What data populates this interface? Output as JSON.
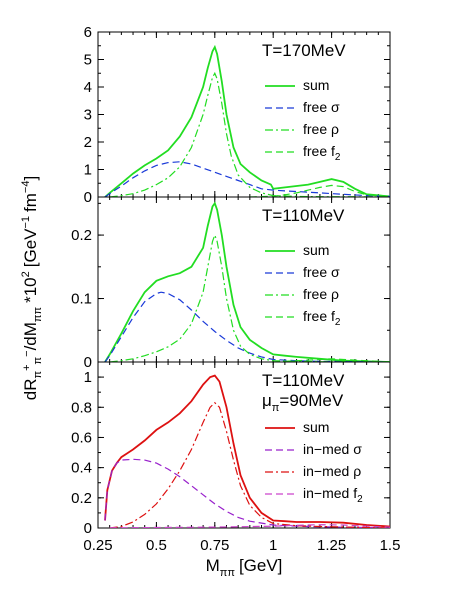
{
  "figure": {
    "xlabel": "M",
    "xlabel_sub": "ππ",
    "xlabel_unit": "[GeV]",
    "ylabel": "dR",
    "ylabel_sub": "π",
    "ylabel_sup": "+",
    "ylabel_sub2": "π",
    "ylabel_sup2": "−",
    "ylabel_mid": "/dM",
    "ylabel_sub3": "ππ",
    "ylabel_pow": "*10",
    "ylabel_pow_exp": "2",
    "ylabel_unit_open": "[GeV",
    "ylabel_unit_exp1": "−1",
    "ylabel_unit_mid": "fm",
    "ylabel_unit_exp2": "−4",
    "ylabel_unit_close": "]"
  },
  "chart_data": [
    {
      "type": "line",
      "panel": "top",
      "annotation": "T=170MeV",
      "xlim": [
        0.25,
        1.5
      ],
      "ylim": [
        0,
        6
      ],
      "x_ticks": [
        "0.25",
        "0.5",
        "0.75",
        "1",
        "1.25",
        "1.5"
      ],
      "y_ticks": [
        "0",
        "1",
        "2",
        "3",
        "4",
        "5",
        "6"
      ],
      "series": [
        {
          "name": "sum",
          "color": "#22dd22",
          "dash": "solid",
          "x": [
            0.28,
            0.3,
            0.35,
            0.4,
            0.45,
            0.5,
            0.55,
            0.6,
            0.65,
            0.7,
            0.72,
            0.74,
            0.75,
            0.76,
            0.78,
            0.8,
            0.83,
            0.86,
            0.9,
            0.95,
            0.99,
            1.0,
            1.05,
            1.1,
            1.15,
            1.2,
            1.25,
            1.3,
            1.35,
            1.4,
            1.5
          ],
          "y": [
            0,
            0.15,
            0.5,
            0.85,
            1.15,
            1.4,
            1.7,
            2.2,
            2.9,
            4.0,
            4.7,
            5.3,
            5.45,
            5.2,
            4.2,
            3.0,
            1.8,
            1.2,
            0.9,
            0.6,
            0.45,
            0.3,
            0.35,
            0.4,
            0.45,
            0.55,
            0.65,
            0.55,
            0.3,
            0.1,
            0.02
          ]
        },
        {
          "name": "free σ",
          "color": "#1a3ad8",
          "dash": "dashed",
          "x": [
            0.28,
            0.3,
            0.35,
            0.4,
            0.45,
            0.5,
            0.55,
            0.6,
            0.65,
            0.7,
            0.75,
            0.8,
            0.85,
            0.9,
            0.95,
            1.0,
            1.05,
            1.1,
            1.2,
            1.3,
            1.4,
            1.5
          ],
          "y": [
            0,
            0.12,
            0.4,
            0.7,
            0.95,
            1.15,
            1.25,
            1.28,
            1.2,
            1.05,
            0.9,
            0.75,
            0.6,
            0.45,
            0.3,
            0.25,
            0.22,
            0.2,
            0.15,
            0.1,
            0.05,
            0.02
          ]
        },
        {
          "name": "free ρ",
          "color": "#22dd22",
          "dash": "dashdot",
          "x": [
            0.3,
            0.35,
            0.4,
            0.45,
            0.5,
            0.55,
            0.6,
            0.65,
            0.7,
            0.72,
            0.74,
            0.75,
            0.76,
            0.78,
            0.8,
            0.82,
            0.85,
            0.9,
            0.95,
            1.0,
            1.1,
            1.2,
            1.3,
            1.5
          ],
          "y": [
            0,
            0.05,
            0.12,
            0.25,
            0.45,
            0.7,
            1.1,
            1.8,
            3.0,
            3.7,
            4.35,
            4.5,
            4.3,
            3.4,
            2.3,
            1.5,
            0.8,
            0.35,
            0.15,
            0.05,
            0.02,
            0.01,
            0.01,
            0
          ]
        },
        {
          "name": "free f",
          "name_sub": "2",
          "color": "#22dd22",
          "dash": "dashed",
          "x": [
            0.9,
            1.0,
            1.05,
            1.1,
            1.15,
            1.2,
            1.25,
            1.3,
            1.35,
            1.4,
            1.5
          ],
          "y": [
            0,
            0.03,
            0.08,
            0.15,
            0.25,
            0.35,
            0.42,
            0.38,
            0.2,
            0.08,
            0.01
          ]
        }
      ]
    },
    {
      "type": "line",
      "panel": "middle",
      "annotation": "T=110MeV",
      "xlim": [
        0.25,
        1.5
      ],
      "ylim": [
        0,
        0.26
      ],
      "x_ticks": [
        "0.25",
        "0.5",
        "0.75",
        "1",
        "1.25",
        "1.5"
      ],
      "y_ticks": [
        "0",
        "0.1",
        "0.2"
      ],
      "series": [
        {
          "name": "sum",
          "color": "#22dd22",
          "dash": "solid",
          "x": [
            0.28,
            0.3,
            0.35,
            0.4,
            0.45,
            0.5,
            0.55,
            0.6,
            0.65,
            0.7,
            0.72,
            0.74,
            0.75,
            0.76,
            0.78,
            0.8,
            0.83,
            0.86,
            0.9,
            0.95,
            1.0,
            1.05,
            1.1,
            1.2,
            1.3,
            1.5
          ],
          "y": [
            0,
            0.012,
            0.045,
            0.08,
            0.11,
            0.128,
            0.135,
            0.14,
            0.15,
            0.18,
            0.215,
            0.245,
            0.25,
            0.24,
            0.2,
            0.15,
            0.09,
            0.055,
            0.035,
            0.022,
            0.012,
            0.01,
            0.008,
            0.005,
            0.002,
            0
          ]
        },
        {
          "name": "free σ",
          "color": "#1a3ad8",
          "dash": "dashed",
          "x": [
            0.28,
            0.3,
            0.35,
            0.4,
            0.45,
            0.5,
            0.52,
            0.55,
            0.6,
            0.65,
            0.7,
            0.75,
            0.8,
            0.85,
            0.9,
            0.95,
            1.0,
            1.1,
            1.2,
            1.5
          ],
          "y": [
            0,
            0.01,
            0.04,
            0.07,
            0.095,
            0.108,
            0.11,
            0.108,
            0.098,
            0.082,
            0.064,
            0.048,
            0.034,
            0.022,
            0.014,
            0.008,
            0.004,
            0.002,
            0.001,
            0
          ]
        },
        {
          "name": "free ρ",
          "color": "#22dd22",
          "dash": "dashdot",
          "x": [
            0.3,
            0.35,
            0.4,
            0.45,
            0.5,
            0.55,
            0.6,
            0.65,
            0.7,
            0.72,
            0.74,
            0.75,
            0.76,
            0.78,
            0.8,
            0.83,
            0.86,
            0.9,
            0.95,
            1.0,
            1.1,
            1.3,
            1.5
          ],
          "y": [
            0,
            0.002,
            0.005,
            0.01,
            0.016,
            0.024,
            0.036,
            0.06,
            0.11,
            0.15,
            0.19,
            0.2,
            0.19,
            0.15,
            0.1,
            0.05,
            0.025,
            0.012,
            0.005,
            0.002,
            0.001,
            0,
            0
          ]
        },
        {
          "name": "free f",
          "name_sub": "2",
          "color": "#22dd22",
          "dash": "dashed",
          "x": [
            1.0,
            1.1,
            1.2,
            1.25,
            1.3,
            1.4,
            1.5
          ],
          "y": [
            0,
            0.002,
            0.004,
            0.005,
            0.004,
            0.002,
            0
          ]
        }
      ]
    },
    {
      "type": "line",
      "panel": "bottom",
      "annotation": "T=110MeV",
      "annotation2_main": "μ",
      "annotation2_sub": "π",
      "annotation2_rest": "=90MeV",
      "xlim": [
        0.25,
        1.5
      ],
      "ylim": [
        0,
        1.1
      ],
      "x_ticks": [
        "0.25",
        "0.5",
        "0.75",
        "1",
        "1.25",
        "1.5"
      ],
      "y_ticks": [
        "0",
        "0.2",
        "0.4",
        "0.6",
        "0.8",
        "1"
      ],
      "series": [
        {
          "name": "sum",
          "color": "#dd1111",
          "dash": "solid",
          "x": [
            0.28,
            0.29,
            0.31,
            0.33,
            0.35,
            0.4,
            0.45,
            0.5,
            0.55,
            0.6,
            0.65,
            0.7,
            0.73,
            0.75,
            0.77,
            0.8,
            0.83,
            0.86,
            0.9,
            0.95,
            1.0,
            1.05,
            1.1,
            1.2,
            1.3,
            1.4,
            1.5
          ],
          "y": [
            0.05,
            0.25,
            0.38,
            0.43,
            0.47,
            0.52,
            0.58,
            0.65,
            0.7,
            0.76,
            0.84,
            0.95,
            1.0,
            1.01,
            0.97,
            0.8,
            0.56,
            0.35,
            0.2,
            0.1,
            0.05,
            0.045,
            0.04,
            0.04,
            0.035,
            0.02,
            0.01
          ]
        },
        {
          "name": "in−med σ",
          "color": "#9922cc",
          "dash": "dashed",
          "x": [
            0.28,
            0.29,
            0.31,
            0.33,
            0.35,
            0.4,
            0.45,
            0.5,
            0.55,
            0.6,
            0.65,
            0.7,
            0.75,
            0.8,
            0.85,
            0.9,
            1.0,
            1.1,
            1.2,
            1.3,
            1.4,
            1.5
          ],
          "y": [
            0.05,
            0.25,
            0.38,
            0.43,
            0.45,
            0.455,
            0.45,
            0.43,
            0.39,
            0.34,
            0.28,
            0.22,
            0.16,
            0.11,
            0.07,
            0.045,
            0.02,
            0.012,
            0.008,
            0.005,
            0.003,
            0.001
          ]
        },
        {
          "name": "in−med ρ",
          "color": "#dd1111",
          "dash": "dashdot",
          "x": [
            0.3,
            0.35,
            0.4,
            0.45,
            0.5,
            0.55,
            0.6,
            0.65,
            0.7,
            0.73,
            0.75,
            0.77,
            0.8,
            0.83,
            0.86,
            0.9,
            0.95,
            1.0,
            1.1,
            1.2,
            1.5
          ],
          "y": [
            0,
            0.01,
            0.04,
            0.09,
            0.16,
            0.26,
            0.38,
            0.52,
            0.7,
            0.8,
            0.83,
            0.8,
            0.64,
            0.45,
            0.28,
            0.15,
            0.07,
            0.03,
            0.015,
            0.01,
            0
          ]
        },
        {
          "name": "in−med f",
          "name_sub": "2",
          "color": "#cc44cc",
          "dash": "dashed",
          "x": [
            0.3,
            0.5,
            0.75,
            1.0,
            1.1,
            1.2,
            1.3,
            1.4,
            1.5
          ],
          "y": [
            0.001,
            0.003,
            0.006,
            0.012,
            0.018,
            0.022,
            0.02,
            0.012,
            0.005
          ]
        }
      ]
    }
  ]
}
